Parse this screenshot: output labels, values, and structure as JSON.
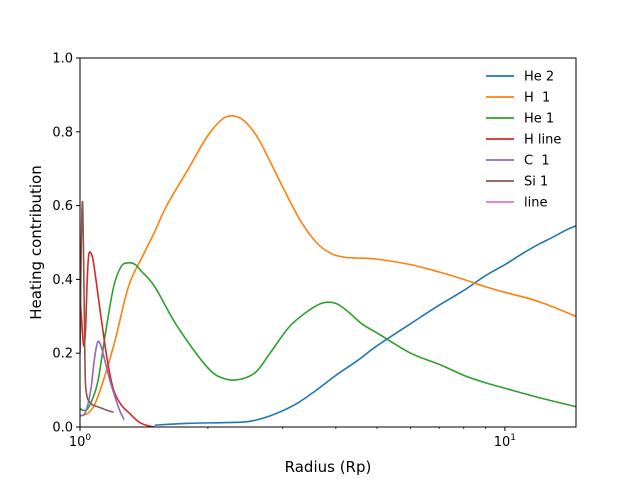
{
  "chart_data": {
    "type": "line",
    "title": "",
    "xlabel": "Radius (Rp)",
    "ylabel": "Heating contribution",
    "xscale": "log",
    "xlim": [
      1.0,
      14.7
    ],
    "ylim": [
      0.0,
      1.0
    ],
    "grid": false,
    "legend_position": "top-right",
    "legend_frame": false,
    "x_major_ticks": [
      1,
      10
    ],
    "x_tick_labels": [
      "10^0",
      "10^1"
    ],
    "y_ticks": [
      0.0,
      0.2,
      0.4,
      0.6,
      0.8,
      1.0
    ],
    "y_tick_labels": [
      "0.0",
      "0.2",
      "0.4",
      "0.6",
      "0.8",
      "1.0"
    ],
    "series": [
      {
        "name": "He 2",
        "color": "#1f77b4",
        "x": [
          1.5,
          1.8,
          2.2,
          2.5,
          2.8,
          3.2,
          3.6,
          4.0,
          4.5,
          5.0,
          6.0,
          7.0,
          8.0,
          9.0,
          10.0,
          11.0,
          12.0,
          13.0,
          14.0,
          14.7
        ],
        "y": [
          0.005,
          0.01,
          0.012,
          0.015,
          0.03,
          0.06,
          0.1,
          0.14,
          0.18,
          0.22,
          0.28,
          0.33,
          0.37,
          0.41,
          0.44,
          0.47,
          0.495,
          0.515,
          0.535,
          0.545
        ]
      },
      {
        "name": "H  1",
        "color": "#ff7f0e",
        "x": [
          1.0,
          1.05,
          1.1,
          1.2,
          1.3,
          1.4,
          1.5,
          1.6,
          1.8,
          2.0,
          2.2,
          2.4,
          2.6,
          2.8,
          3.0,
          3.3,
          3.6,
          3.9,
          4.2,
          4.5,
          5.0,
          6.0,
          7.0,
          8.0,
          9.0,
          10.0,
          12.0,
          14.7
        ],
        "y": [
          0.03,
          0.04,
          0.08,
          0.22,
          0.38,
          0.46,
          0.53,
          0.6,
          0.7,
          0.79,
          0.84,
          0.835,
          0.79,
          0.72,
          0.65,
          0.56,
          0.5,
          0.47,
          0.46,
          0.458,
          0.455,
          0.44,
          0.42,
          0.4,
          0.38,
          0.365,
          0.34,
          0.3
        ]
      },
      {
        "name": "He 1",
        "color": "#2ca02c",
        "x": [
          1.0,
          1.02,
          1.05,
          1.1,
          1.15,
          1.2,
          1.25,
          1.3,
          1.35,
          1.4,
          1.5,
          1.7,
          2.0,
          2.2,
          2.4,
          2.6,
          2.8,
          3.1,
          3.4,
          3.7,
          4.0,
          4.3,
          4.6,
          5.0,
          6.0,
          7.0,
          8.0,
          9.0,
          10.0,
          12.0,
          14.7
        ],
        "y": [
          0.05,
          0.045,
          0.055,
          0.12,
          0.26,
          0.38,
          0.435,
          0.445,
          0.44,
          0.42,
          0.38,
          0.27,
          0.16,
          0.13,
          0.13,
          0.15,
          0.2,
          0.27,
          0.31,
          0.335,
          0.335,
          0.31,
          0.28,
          0.255,
          0.2,
          0.17,
          0.14,
          0.12,
          0.105,
          0.08,
          0.055
        ]
      },
      {
        "name": "H line",
        "color": "#d62728",
        "x": [
          1.0,
          1.01,
          1.02,
          1.03,
          1.04,
          1.05,
          1.07,
          1.09,
          1.12,
          1.16,
          1.2,
          1.25,
          1.3,
          1.37,
          1.43,
          1.5
        ],
        "y": [
          0.36,
          0.28,
          0.22,
          0.26,
          0.4,
          0.47,
          0.46,
          0.4,
          0.3,
          0.18,
          0.1,
          0.06,
          0.04,
          0.015,
          0.005,
          0.0
        ]
      },
      {
        "name": "C  1",
        "color": "#9467bd",
        "x": [
          1.0,
          1.03,
          1.06,
          1.08,
          1.1,
          1.12,
          1.15,
          1.18,
          1.21,
          1.24,
          1.27
        ],
        "y": [
          0.03,
          0.04,
          0.1,
          0.18,
          0.23,
          0.22,
          0.17,
          0.12,
          0.08,
          0.045,
          0.02
        ]
      },
      {
        "name": "Si 1",
        "color": "#8c564b",
        "x": [
          1.0,
          1.005,
          1.01,
          1.015,
          1.02,
          1.025,
          1.03,
          1.04,
          1.05,
          1.07,
          1.1,
          1.13,
          1.16,
          1.2
        ],
        "y": [
          0.2,
          0.42,
          0.58,
          0.6,
          0.45,
          0.25,
          0.12,
          0.08,
          0.07,
          0.06,
          0.055,
          0.05,
          0.045,
          0.04
        ]
      },
      {
        "name": "line",
        "color": "#e377c2",
        "x": [],
        "y": []
      }
    ]
  }
}
